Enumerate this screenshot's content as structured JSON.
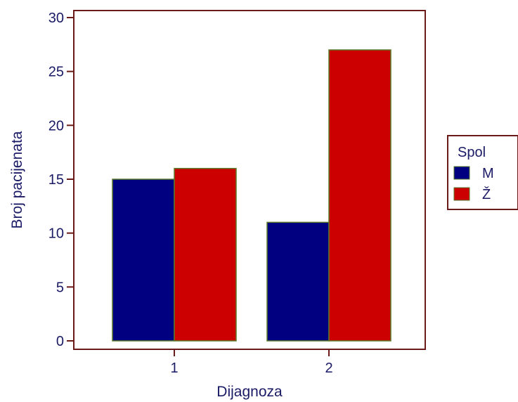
{
  "chart_data": {
    "type": "bar",
    "title": "",
    "xlabel": "Dijagnoza",
    "ylabel": "Broj pacijenata",
    "categories": [
      "1",
      "2"
    ],
    "ylim": [
      0,
      30
    ],
    "yticks": [
      0,
      5,
      10,
      15,
      20,
      25,
      30
    ],
    "grid": false,
    "legend": {
      "title": "Spol",
      "placement": "right"
    },
    "series": [
      {
        "name": "M",
        "values": [
          15,
          11
        ],
        "color": "#000080"
      },
      {
        "name": "Ž",
        "values": [
          16,
          27
        ],
        "color": "#cc0000"
      }
    ],
    "colors": {
      "frame": "#6b1a1a",
      "bar_edge": "#5a7a2a",
      "text": "#1a1a66"
    }
  }
}
